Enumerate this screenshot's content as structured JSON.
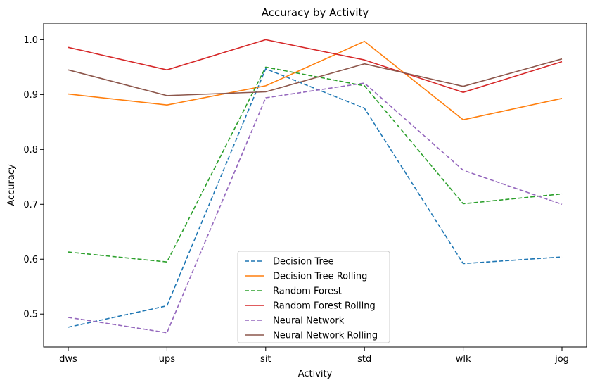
{
  "chart_data": {
    "type": "line",
    "title": "Accuracy by Activity",
    "xlabel": "Activity",
    "ylabel": "Accuracy",
    "categories": [
      "dws",
      "ups",
      "sit",
      "std",
      "wlk",
      "jog"
    ],
    "ylim": [
      0.44,
      1.03
    ],
    "yticks": [
      "0.5",
      "0.6",
      "0.7",
      "0.8",
      "0.9",
      "1.0"
    ],
    "legend_position": "bottom-center",
    "grid": false,
    "series": [
      {
        "name": "Decision Tree",
        "color": "#1f77b4",
        "dashed": true,
        "values": [
          0.476,
          0.515,
          0.947,
          0.875,
          0.592,
          0.604
        ]
      },
      {
        "name": "Decision Tree Rolling",
        "color": "#ff7f0e",
        "dashed": false,
        "values": [
          0.901,
          0.881,
          0.916,
          0.997,
          0.854,
          0.893
        ]
      },
      {
        "name": "Random Forest",
        "color": "#2ca02c",
        "dashed": true,
        "values": [
          0.613,
          0.595,
          0.95,
          0.916,
          0.701,
          0.719
        ]
      },
      {
        "name": "Random Forest Rolling",
        "color": "#d62728",
        "dashed": false,
        "values": [
          0.986,
          0.945,
          1.0,
          0.963,
          0.904,
          0.96
        ]
      },
      {
        "name": "Neural Network",
        "color": "#9467bd",
        "dashed": true,
        "values": [
          0.494,
          0.466,
          0.894,
          0.921,
          0.762,
          0.7
        ]
      },
      {
        "name": "Neural Network Rolling",
        "color": "#8c564b",
        "dashed": false,
        "values": [
          0.945,
          0.898,
          0.905,
          0.956,
          0.915,
          0.965
        ]
      }
    ]
  }
}
